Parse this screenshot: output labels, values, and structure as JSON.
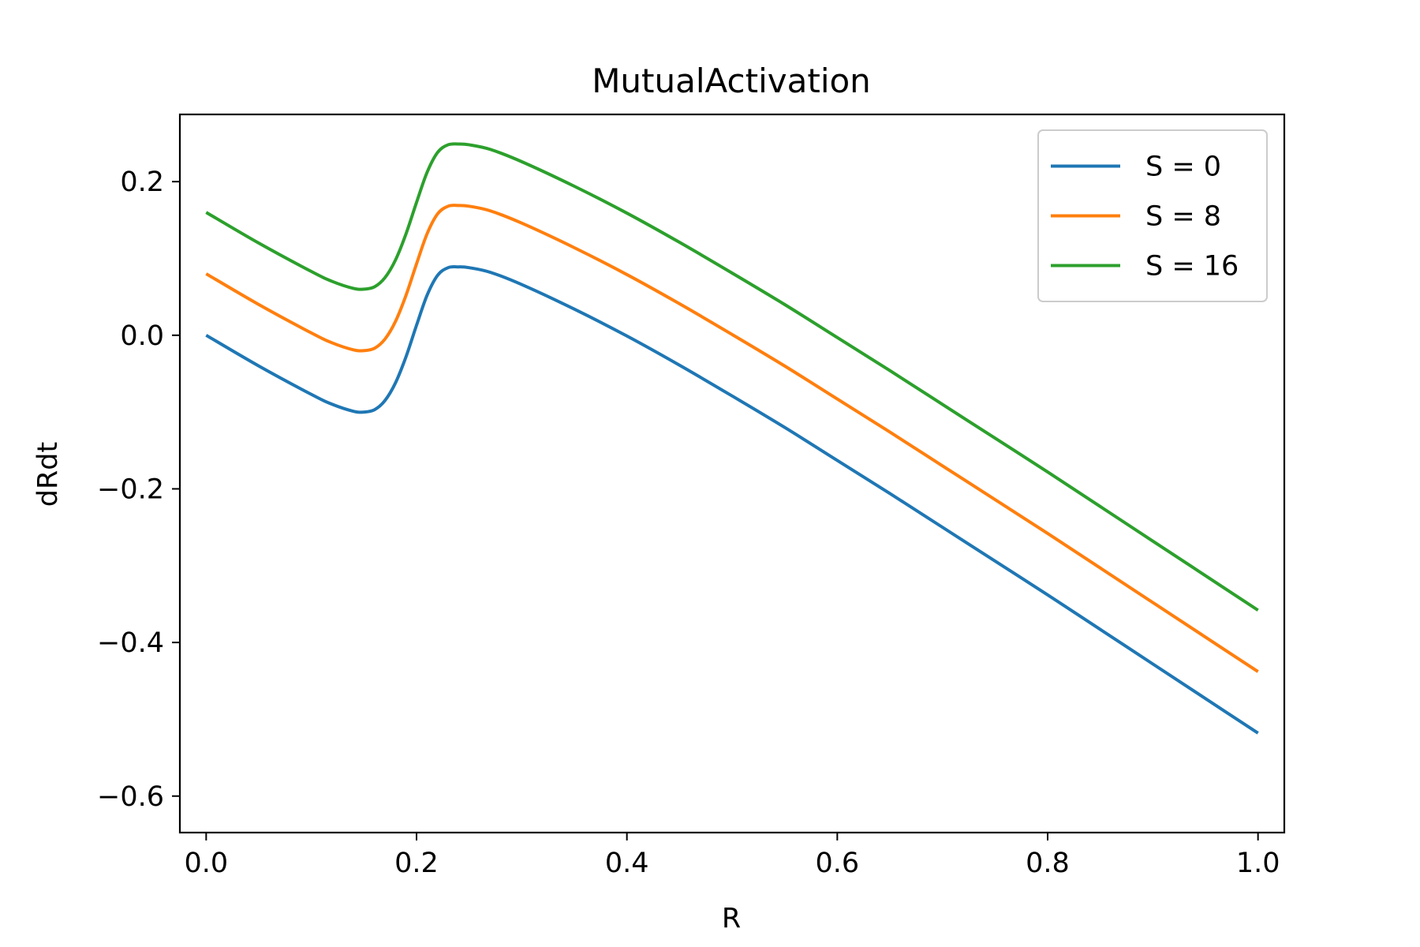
{
  "chart_data": {
    "type": "line",
    "title": "MutualActivation",
    "xlabel": "R",
    "ylabel": "dRdt",
    "xlim": [
      -0.025,
      1.025
    ],
    "ylim": [
      -0.6475,
      0.2875
    ],
    "xticks": [
      0.0,
      0.2,
      0.4,
      0.6,
      0.8,
      1.0
    ],
    "xtick_labels": [
      "0.0",
      "0.2",
      "0.4",
      "0.6",
      "0.8",
      "1.0"
    ],
    "yticks": [
      0.2,
      0.0,
      -0.2,
      -0.4,
      -0.6
    ],
    "ytick_labels": [
      "0.2",
      "0.0",
      "−0.2",
      "−0.4",
      "−0.6"
    ],
    "grid": false,
    "legend_position": "top-right",
    "x": [
      0.0,
      0.05,
      0.1,
      0.12,
      0.14,
      0.15,
      0.16,
      0.17,
      0.18,
      0.19,
      0.2,
      0.21,
      0.22,
      0.23,
      0.24,
      0.25,
      0.27,
      0.3,
      0.35,
      0.4,
      0.45,
      0.5,
      0.55,
      0.6,
      0.65,
      0.7,
      0.75,
      0.8,
      0.85,
      0.9,
      0.95,
      1.0
    ],
    "series": [
      {
        "name": "S = 0",
        "color": "#1f77b4",
        "values": [
          0.0,
          -0.04,
          -0.077,
          -0.09,
          -0.099,
          -0.1,
          -0.097,
          -0.085,
          -0.062,
          -0.028,
          0.013,
          0.052,
          0.078,
          0.088,
          0.089,
          0.088,
          0.082,
          0.066,
          0.034,
          -0.001,
          -0.039,
          -0.079,
          -0.12,
          -0.163,
          -0.206,
          -0.25,
          -0.294,
          -0.338,
          -0.383,
          -0.428,
          -0.473,
          -0.518
        ]
      },
      {
        "name": "S = 8",
        "color": "#ff7f0e",
        "values": [
          0.08,
          0.04,
          0.003,
          -0.01,
          -0.019,
          -0.02,
          -0.017,
          -0.005,
          0.018,
          0.052,
          0.093,
          0.132,
          0.158,
          0.168,
          0.169,
          0.168,
          0.162,
          0.146,
          0.114,
          0.079,
          0.041,
          0.001,
          -0.04,
          -0.083,
          -0.126,
          -0.17,
          -0.214,
          -0.258,
          -0.303,
          -0.348,
          -0.393,
          -0.438
        ]
      },
      {
        "name": "S = 16",
        "color": "#2ca02c",
        "values": [
          0.16,
          0.12,
          0.083,
          0.07,
          0.061,
          0.06,
          0.063,
          0.075,
          0.098,
          0.132,
          0.173,
          0.212,
          0.238,
          0.248,
          0.249,
          0.248,
          0.242,
          0.226,
          0.194,
          0.159,
          0.121,
          0.081,
          0.04,
          -0.003,
          -0.046,
          -0.09,
          -0.134,
          -0.178,
          -0.223,
          -0.268,
          -0.313,
          -0.358
        ]
      }
    ]
  }
}
